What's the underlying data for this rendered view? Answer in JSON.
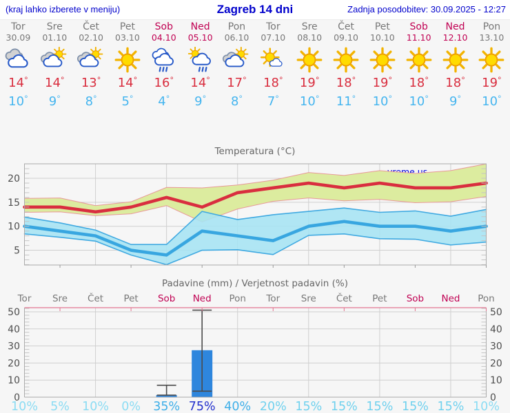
{
  "header": {
    "left_note": "(kraj lahko izberete v meniju)",
    "title": "Zagreb 14 dni",
    "updated": "Zadnja posodobitev: 30.09.2025 - 12:27"
  },
  "watermark": "vreme.us",
  "colors": {
    "link_blue": "#0000cc",
    "weekday_gray": "#777777",
    "weekend_crimson": "#c00052",
    "temp_max_red": "#d92e3f",
    "temp_min_blue": "#45b5ef",
    "band_green": "#dcec9f",
    "band_green_edge": "#e89898",
    "band_blue": "#a6e4f4",
    "band_blue_edge": "#3fa9e1",
    "bar_blue": "#2e86dd",
    "whisker_gray": "#4b4b4b",
    "grid_gray": "#cfcfcf",
    "axis_gray": "#ababab",
    "pink_axis": "#e2738f",
    "tick_label_gray": "#4d4d4d",
    "prob_low": "#8bdcf3",
    "prob_mid": "#70d1ee",
    "prob_high": "#3fafe8",
    "prob_max": "#2431cd"
  },
  "days": [
    {
      "name": "Tor",
      "date": "30.09",
      "weekend": false,
      "icon": "cloudy-icon",
      "tmax": "14",
      "tmin": "10"
    },
    {
      "name": "Sre",
      "date": "01.10",
      "weekend": false,
      "icon": "partly-cloudy-icon",
      "tmax": "14",
      "tmin": "9"
    },
    {
      "name": "Čet",
      "date": "02.10",
      "weekend": false,
      "icon": "partly-cloudy-icon",
      "tmax": "13",
      "tmin": "8"
    },
    {
      "name": "Pet",
      "date": "03.10",
      "weekend": false,
      "icon": "sunny-icon",
      "tmax": "14",
      "tmin": "5"
    },
    {
      "name": "Sob",
      "date": "04.10",
      "weekend": true,
      "icon": "rain-icon",
      "tmax": "16",
      "tmin": "4"
    },
    {
      "name": "Ned",
      "date": "05.10",
      "weekend": true,
      "icon": "sun-rain-icon",
      "tmax": "14",
      "tmin": "9"
    },
    {
      "name": "Pon",
      "date": "06.10",
      "weekend": false,
      "icon": "partly-cloudy-icon",
      "tmax": "17",
      "tmin": "8"
    },
    {
      "name": "Tor",
      "date": "07.10",
      "weekend": false,
      "icon": "mostly-sunny-icon",
      "tmax": "18",
      "tmin": "7"
    },
    {
      "name": "Sre",
      "date": "08.10",
      "weekend": false,
      "icon": "sunny-icon",
      "tmax": "19",
      "tmin": "10"
    },
    {
      "name": "Čet",
      "date": "09.10",
      "weekend": false,
      "icon": "sunny-icon",
      "tmax": "18",
      "tmin": "11"
    },
    {
      "name": "Pet",
      "date": "10.10",
      "weekend": false,
      "icon": "sunny-icon",
      "tmax": "19",
      "tmin": "10"
    },
    {
      "name": "Sob",
      "date": "11.10",
      "weekend": true,
      "icon": "sunny-icon",
      "tmax": "18",
      "tmin": "10"
    },
    {
      "name": "Ned",
      "date": "12.10",
      "weekend": true,
      "icon": "sunny-icon",
      "tmax": "18",
      "tmin": "9"
    },
    {
      "name": "Pon",
      "date": "13.10",
      "weekend": false,
      "icon": "sunny-icon",
      "tmax": "19",
      "tmin": "10"
    }
  ],
  "chart_data": [
    {
      "type": "line",
      "title": "Temperatura (°C)",
      "categories": [
        "Tor",
        "Sre",
        "Čet",
        "Pet",
        "Sob",
        "Ned",
        "Pon",
        "Tor",
        "Sre",
        "Čet",
        "Pet",
        "Sob",
        "Ned",
        "Pon"
      ],
      "ylim": [
        1.9,
        23
      ],
      "yticks": [
        5,
        10,
        15,
        20
      ],
      "grid_days": [
        2,
        4,
        6,
        8,
        10,
        12
      ],
      "legend_position": "none",
      "series": [
        {
          "name": "max_temp",
          "color": "#d92e3f",
          "values": [
            14,
            14,
            13,
            14,
            16,
            14,
            17,
            18,
            19,
            18,
            19,
            18,
            18,
            19
          ]
        },
        {
          "name": "max_range_high",
          "values": [
            15.8,
            15.9,
            14.3,
            15.1,
            18.1,
            18,
            18.6,
            19.6,
            21.2,
            20.6,
            21.6,
            21,
            21.6,
            23
          ]
        },
        {
          "name": "max_range_low",
          "values": [
            12.9,
            13,
            12.2,
            12.6,
            14.3,
            10.9,
            13.6,
            15.2,
            15.9,
            15.3,
            15.6,
            14.9,
            15.1,
            16.2
          ]
        },
        {
          "name": "min_temp",
          "color": "#38a6e0",
          "values": [
            10,
            9,
            8,
            5,
            4,
            9,
            8,
            7,
            10,
            11,
            10,
            10,
            9,
            10
          ]
        },
        {
          "name": "min_range_high",
          "values": [
            11.9,
            10.7,
            9.2,
            6.2,
            6.2,
            13.1,
            11.4,
            12.4,
            13.1,
            13.8,
            12.9,
            13.2,
            12.1,
            13.5
          ]
        },
        {
          "name": "min_range_low",
          "values": [
            8.4,
            7.7,
            6.9,
            4,
            2,
            5,
            5.1,
            4.1,
            8.1,
            8.4,
            7.4,
            7.3,
            6.1,
            6.7
          ]
        }
      ]
    },
    {
      "type": "bar",
      "title": "Padavine (mm) / Verjetnost padavin (%)",
      "categories": [
        "Tor",
        "Sre",
        "Čet",
        "Pet",
        "Sob",
        "Ned",
        "Pon",
        "Tor",
        "Sre",
        "Čet",
        "Pet",
        "Sob",
        "Ned",
        "Pon"
      ],
      "weekend_days": [
        4,
        5,
        11,
        12
      ],
      "ylim": [
        0,
        52.4
      ],
      "yticks": [
        0,
        10,
        20,
        30,
        40,
        50
      ],
      "grid_days": [
        2,
        4,
        6,
        8,
        10,
        12
      ],
      "values_mm": [
        0,
        0,
        0,
        0,
        1.2,
        27.5,
        0,
        0,
        0,
        0,
        0,
        0,
        0,
        0
      ],
      "whiskers": [
        {
          "day": 4,
          "low": 1.2,
          "high": 7
        },
        {
          "day": 5,
          "low": 3.5,
          "high": 51
        }
      ],
      "probability_pct": [
        10,
        5,
        10,
        0,
        35,
        75,
        40,
        20,
        15,
        15,
        15,
        15,
        15,
        10
      ],
      "probability_labels": [
        "10%",
        "5%",
        "10%",
        "0%",
        "35%",
        "75%",
        "40%",
        "20%",
        "15%",
        "15%",
        "15%",
        "15%",
        "15%",
        "10%"
      ]
    }
  ]
}
